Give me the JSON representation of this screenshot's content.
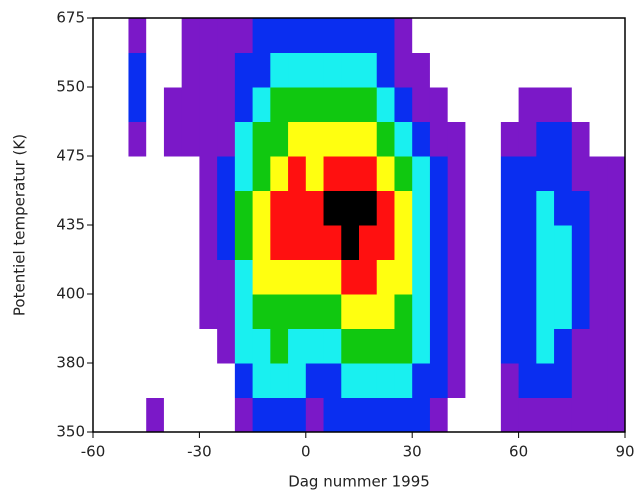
{
  "chart_data": {
    "type": "contour",
    "x_label": "Dag nummer 1995",
    "y_label": "Potentiel temperatur (K)",
    "xlim": [
      -60,
      90
    ],
    "xticks": [
      -60,
      -30,
      0,
      30,
      60,
      90
    ],
    "yticks": [
      350,
      380,
      400,
      435,
      475,
      550,
      675
    ],
    "colors": [
      "#ffffff",
      "#7b18c8",
      "#0a2ef0",
      "#19f0f0",
      "#10c810",
      "#ffff10",
      "#ff1010",
      "#000000"
    ],
    "x": [
      -57.5,
      -52.5,
      -47.5,
      -42.5,
      -37.5,
      -32.5,
      -27.5,
      -22.5,
      -17.5,
      -12.5,
      -7.5,
      -2.5,
      2.5,
      7.5,
      12.5,
      17.5,
      22.5,
      27.5,
      32.5,
      37.5,
      42.5,
      47.5,
      52.5,
      57.5,
      62.5,
      67.5,
      72.5,
      77.5,
      82.5,
      87.5
    ],
    "z": [
      [
        0,
        0,
        0,
        1,
        0,
        0,
        0,
        0,
        1,
        2,
        2,
        2,
        1,
        2,
        2,
        2,
        2,
        2,
        2,
        1,
        0,
        0,
        0,
        1,
        1,
        1,
        1,
        1,
        1,
        1
      ],
      [
        0,
        0,
        0,
        0,
        0,
        0,
        0,
        0,
        2,
        3,
        3,
        3,
        2,
        2,
        3,
        3,
        3,
        3,
        2,
        2,
        1,
        0,
        0,
        1,
        2,
        2,
        2,
        1,
        1,
        1
      ],
      [
        0,
        0,
        0,
        0,
        0,
        0,
        0,
        1,
        3,
        3,
        4,
        3,
        3,
        3,
        4,
        4,
        4,
        4,
        3,
        2,
        1,
        0,
        0,
        2,
        2,
        3,
        2,
        1,
        1,
        1
      ],
      [
        0,
        0,
        0,
        0,
        0,
        0,
        1,
        1,
        3,
        4,
        4,
        4,
        4,
        4,
        5,
        5,
        5,
        4,
        3,
        2,
        1,
        0,
        0,
        2,
        2,
        3,
        3,
        2,
        1,
        1
      ],
      [
        0,
        0,
        0,
        0,
        0,
        0,
        1,
        1,
        3,
        5,
        5,
        5,
        5,
        5,
        6,
        6,
        5,
        5,
        3,
        2,
        1,
        0,
        0,
        2,
        2,
        3,
        3,
        2,
        1,
        1
      ],
      [
        0,
        0,
        0,
        0,
        0,
        0,
        1,
        2,
        4,
        5,
        6,
        6,
        6,
        6,
        7,
        6,
        6,
        5,
        3,
        2,
        1,
        0,
        0,
        2,
        2,
        3,
        3,
        2,
        1,
        1
      ],
      [
        0,
        0,
        0,
        0,
        0,
        0,
        1,
        2,
        4,
        5,
        6,
        6,
        6,
        7,
        7,
        7,
        6,
        5,
        3,
        2,
        1,
        0,
        0,
        2,
        2,
        3,
        2,
        2,
        1,
        1
      ],
      [
        0,
        0,
        0,
        0,
        0,
        0,
        1,
        2,
        3,
        4,
        5,
        6,
        5,
        6,
        6,
        6,
        5,
        4,
        3,
        2,
        1,
        0,
        0,
        2,
        2,
        2,
        2,
        1,
        1,
        1
      ],
      [
        0,
        0,
        1,
        0,
        1,
        1,
        1,
        1,
        3,
        4,
        4,
        5,
        5,
        5,
        5,
        5,
        4,
        3,
        2,
        1,
        1,
        0,
        0,
        1,
        1,
        2,
        2,
        1,
        0,
        0
      ],
      [
        0,
        0,
        2,
        0,
        1,
        1,
        1,
        1,
        2,
        3,
        4,
        4,
        4,
        4,
        4,
        4,
        3,
        2,
        1,
        1,
        0,
        0,
        0,
        0,
        1,
        1,
        1,
        0,
        0,
        0
      ],
      [
        0,
        0,
        2,
        0,
        0,
        1,
        1,
        1,
        2,
        2,
        3,
        3,
        3,
        3,
        3,
        3,
        2,
        1,
        1,
        0,
        0,
        0,
        0,
        0,
        0,
        0,
        0,
        0,
        0,
        0
      ],
      [
        0,
        0,
        1,
        0,
        0,
        1,
        1,
        1,
        1,
        2,
        2,
        2,
        2,
        2,
        2,
        2,
        2,
        1,
        0,
        0,
        0,
        0,
        0,
        0,
        0,
        0,
        0,
        0,
        0,
        0
      ]
    ]
  }
}
